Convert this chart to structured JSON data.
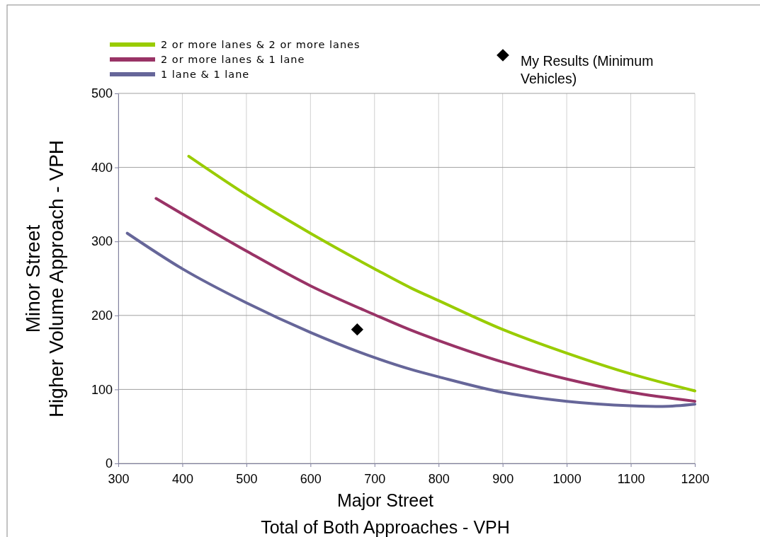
{
  "chart_data": {
    "type": "line",
    "xlabel": "Major Street\nTotal of Both Approaches - VPH",
    "ylabel": "Minor Street\nHigher Volume Approach - VPH",
    "xlim": [
      300,
      1200
    ],
    "ylim": [
      0,
      500
    ],
    "xticks": [
      300,
      400,
      500,
      600,
      700,
      800,
      900,
      1000,
      1100,
      1200
    ],
    "yticks": [
      0,
      100,
      200,
      300,
      400,
      500
    ],
    "grid": true,
    "legend": "top",
    "series": [
      {
        "name": "2 or more lanes & 2 or more lanes",
        "color": "#99cc00",
        "x": [
          410,
          500,
          600,
          700,
          757,
          800,
          900,
          1000,
          1100,
          1200
        ],
        "values": [
          415,
          363,
          311,
          263,
          237,
          220,
          181,
          149,
          121,
          98
        ]
      },
      {
        "name": "2 or more lanes & 1 lane",
        "color": "#993366",
        "x": [
          359,
          400,
          500,
          600,
          700,
          757,
          800,
          900,
          1000,
          1100,
          1200
        ],
        "values": [
          358,
          337,
          287,
          240,
          201,
          180,
          166,
          137,
          114,
          96,
          84
        ]
      },
      {
        "name": "1 lane & 1 lane",
        "color": "#666699",
        "x": [
          314,
          400,
          500,
          600,
          700,
          757,
          800,
          900,
          1000,
          1100,
          1150,
          1200
        ],
        "values": [
          311,
          263,
          217,
          177,
          143,
          127,
          117,
          96,
          84,
          78,
          77,
          80
        ]
      },
      {
        "name": "My Results (Minimum Vehicles)",
        "type": "scatter",
        "marker": "diamond",
        "color": "#000000",
        "x": [
          673
        ],
        "values": [
          181
        ]
      }
    ]
  }
}
